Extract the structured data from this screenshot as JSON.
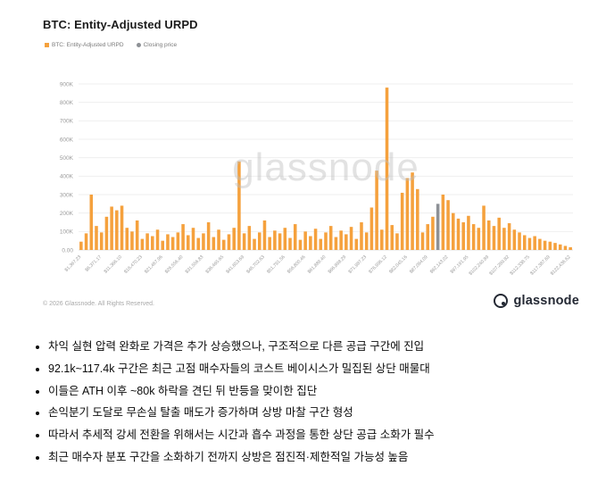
{
  "header": {
    "title": "BTC: Entity-Adjusted URPD"
  },
  "chart_data": {
    "type": "bar",
    "title": "BTC: Entity-Adjusted URPD",
    "xlabel": "",
    "ylabel": "",
    "unit": "K",
    "ylim": [
      0,
      900
    ],
    "y_tick_step": 100,
    "y_zero_label": "0.00",
    "grid": "horizontal",
    "legend_position": "top-left",
    "legend": [
      {
        "label": "BTC: Entity-Adjusted URPD",
        "color": "#F5A13D"
      },
      {
        "label": "Closing price",
        "color": "#8E9196"
      }
    ],
    "bar_color": "#F5A13D",
    "closing_color": "#8E9196",
    "closing_price_index": 70,
    "watermark": "glassnode",
    "x_tick_every": 4,
    "x_tick_labels": [
      "$1,367.23",
      "$6,371.17",
      "$11,366.10",
      "$16,470.23",
      "$21,467.96",
      "$26,556.40",
      "$31,556.83",
      "$36,465.65",
      "$41,653.69",
      "$46,702.63",
      "$51,791.56",
      "$56,800.46",
      "$61,889.40",
      "$66,898.29",
      "$71,987.23",
      "$76,996.12",
      "$82,045.16",
      "$87,094.09",
      "$92,143.02",
      "$97,191.95",
      "$102,240.89",
      "$107,289.82",
      "$112,338.75",
      "$117,387.69",
      "$122,436.62"
    ],
    "values": [
      45,
      90,
      300,
      130,
      95,
      180,
      235,
      215,
      240,
      120,
      100,
      160,
      60,
      90,
      75,
      110,
      50,
      85,
      70,
      95,
      140,
      80,
      120,
      65,
      90,
      150,
      70,
      110,
      55,
      85,
      120,
      480,
      90,
      130,
      60,
      95,
      160,
      70,
      105,
      90,
      120,
      65,
      140,
      55,
      100,
      75,
      115,
      60,
      95,
      130,
      70,
      105,
      85,
      125,
      60,
      150,
      95,
      230,
      430,
      110,
      880,
      135,
      90,
      310,
      390,
      420,
      330,
      95,
      140,
      180,
      250,
      300,
      270,
      200,
      170,
      150,
      185,
      140,
      120,
      240,
      160,
      130,
      175,
      120,
      145,
      110,
      95,
      80,
      65,
      75,
      60,
      50,
      45,
      38,
      30,
      22,
      15
    ]
  },
  "footer_chart": {
    "copyright": "© 2026 Glassnode. All Rights Reserved.",
    "brand": "glassnode"
  },
  "bullets": [
    "차익 실현 압력 완화로 가격은 추가 상승했으나, 구조적으로 다른 공급 구간에 진입",
    "92.1k~117.4k 구간은 최근 고점 매수자들의 코스트 베이시스가 밀집된 상단 매물대",
    "이들은 ATH 이후 ~80k 하락을 견딘 뒤 반등을 맞이한 집단",
    "손익분기 도달로 무손실 탈출 매도가 증가하며 상방 마찰 구간 형성",
    "따라서 추세적 강세 전환을 위해서는 시간과 흡수 과정을 통한 상단 공급 소화가 필수",
    "최근 매수자 분포 구간을 소화하기 전까지 상방은 점진적·제한적일 가능성 높음"
  ]
}
